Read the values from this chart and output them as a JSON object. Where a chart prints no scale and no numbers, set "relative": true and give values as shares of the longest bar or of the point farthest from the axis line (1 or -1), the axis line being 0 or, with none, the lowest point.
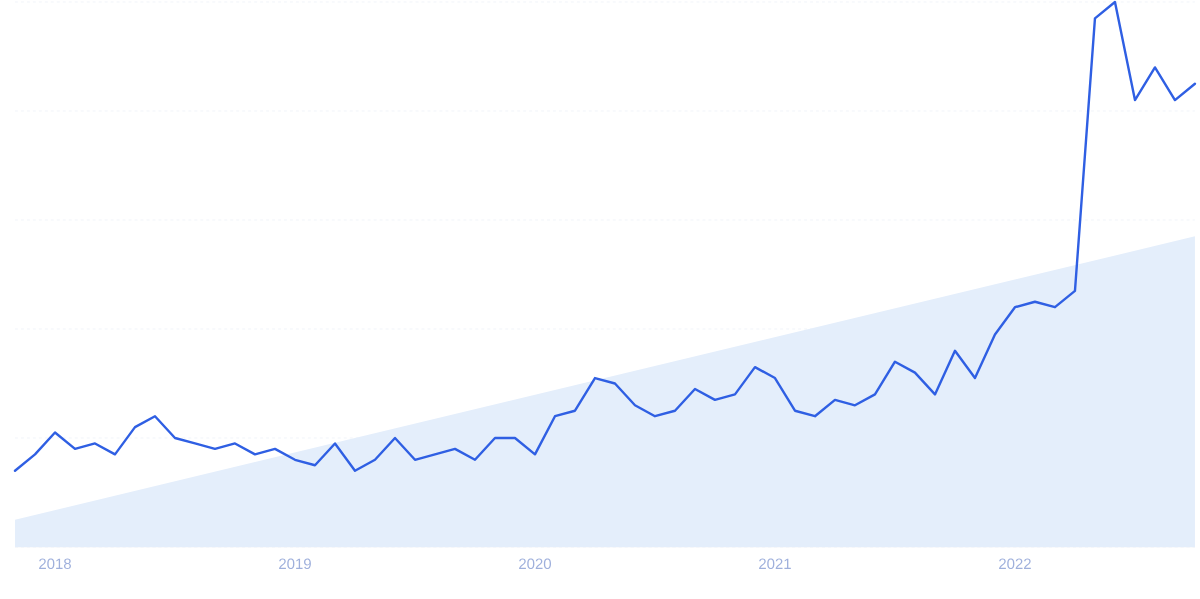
{
  "chart_data": {
    "type": "line",
    "relative": true,
    "grid": "y",
    "xlim": [
      "2017-11",
      "2022-10"
    ],
    "xticks": [
      {
        "value": "2018-01",
        "label": "2018"
      },
      {
        "value": "2019-01",
        "label": "2019"
      },
      {
        "value": "2020-01",
        "label": "2020"
      },
      {
        "value": "2021-01",
        "label": "2021"
      },
      {
        "value": "2022-01",
        "label": "2022"
      }
    ],
    "series": [
      {
        "type": "area",
        "color": "#e4eefb",
        "x": [
          "2017-11",
          "2022-10"
        ],
        "values": [
          0.05,
          0.57
        ]
      },
      {
        "color": "#2f5fe3",
        "x": [
          "2017-11",
          "2017-12",
          "2018-01",
          "2018-02",
          "2018-03",
          "2018-04",
          "2018-05",
          "2018-06",
          "2018-07",
          "2018-08",
          "2018-09",
          "2018-10",
          "2018-11",
          "2018-12",
          "2019-01",
          "2019-02",
          "2019-03",
          "2019-04",
          "2019-05",
          "2019-06",
          "2019-07",
          "2019-08",
          "2019-09",
          "2019-10",
          "2019-11",
          "2019-12",
          "2020-01",
          "2020-02",
          "2020-03",
          "2020-04",
          "2020-05",
          "2020-06",
          "2020-07",
          "2020-08",
          "2020-09",
          "2020-10",
          "2020-11",
          "2020-12",
          "2021-01",
          "2021-02",
          "2021-03",
          "2021-04",
          "2021-05",
          "2021-06",
          "2021-07",
          "2021-08",
          "2021-09",
          "2021-10",
          "2021-11",
          "2021-12",
          "2022-01",
          "2022-02",
          "2022-03",
          "2022-04",
          "2022-05",
          "2022-06",
          "2022-07",
          "2022-08",
          "2022-09",
          "2022-10"
        ],
        "values": [
          0.14,
          0.17,
          0.21,
          0.18,
          0.19,
          0.17,
          0.22,
          0.24,
          0.2,
          0.19,
          0.18,
          0.19,
          0.17,
          0.18,
          0.16,
          0.15,
          0.19,
          0.14,
          0.16,
          0.2,
          0.16,
          0.17,
          0.18,
          0.16,
          0.2,
          0.2,
          0.17,
          0.24,
          0.25,
          0.31,
          0.3,
          0.26,
          0.24,
          0.25,
          0.29,
          0.27,
          0.28,
          0.33,
          0.31,
          0.25,
          0.24,
          0.27,
          0.26,
          0.28,
          0.34,
          0.32,
          0.28,
          0.36,
          0.31,
          0.39,
          0.44,
          0.45,
          0.44,
          0.47,
          0.97,
          1,
          0.82,
          0.88,
          0.82,
          0.85
        ]
      }
    ]
  }
}
